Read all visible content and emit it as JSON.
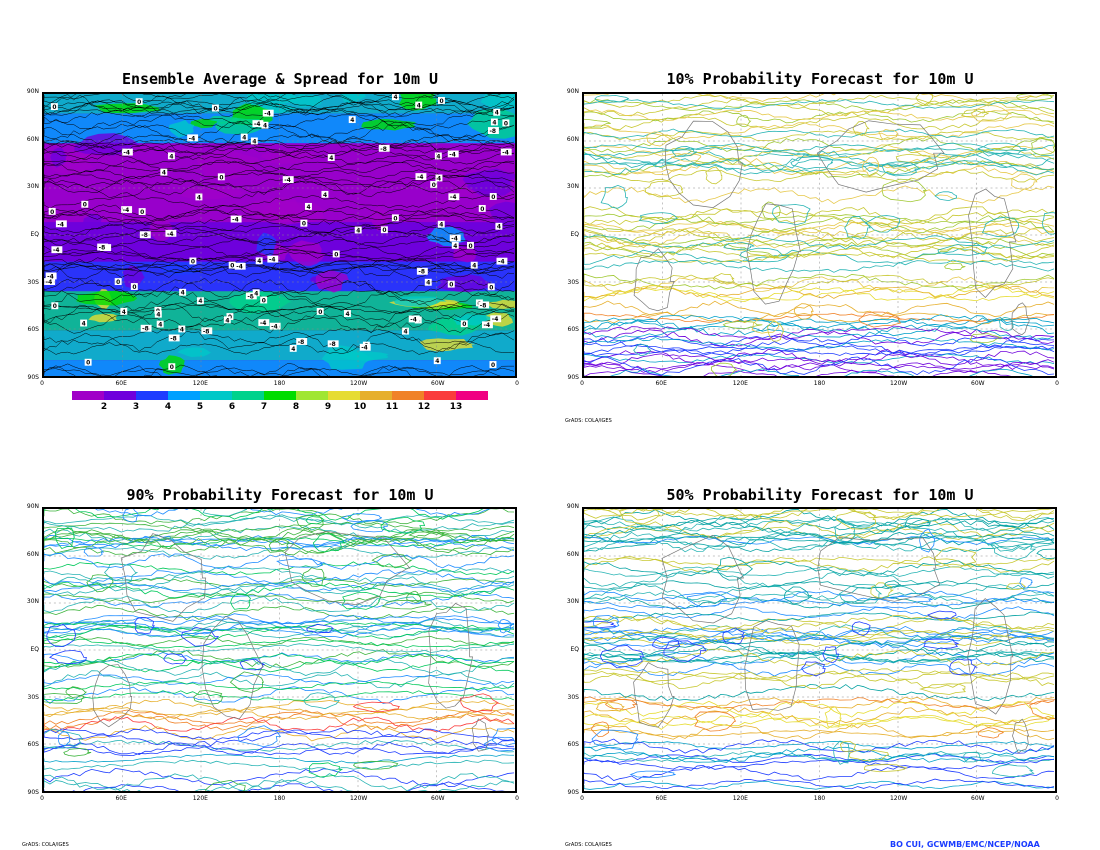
{
  "panels": [
    {
      "id": "ensemble",
      "title": "Ensemble Average & Spread for 10m U"
    },
    {
      "id": "p10",
      "title": "10% Probability Forecast for 10m U"
    },
    {
      "id": "p90",
      "title": "90% Probability Forecast for 10m U"
    },
    {
      "id": "p50",
      "title": "50% Probability Forecast for 10m U"
    }
  ],
  "lat_labels": [
    "90N",
    "60N",
    "30N",
    "EQ",
    "30S",
    "60S",
    "90S"
  ],
  "lon_labels": [
    "0",
    "60E",
    "120E",
    "180",
    "120W",
    "60W",
    "0"
  ],
  "colorbar": {
    "labels": [
      "2",
      "3",
      "4",
      "5",
      "6",
      "7",
      "8",
      "9",
      "10",
      "11",
      "12",
      "13"
    ],
    "colors": [
      "#a000c8",
      "#6e00dc",
      "#1e3cff",
      "#00a0ff",
      "#00c8c8",
      "#00d28c",
      "#00dc00",
      "#a0e632",
      "#e6dc32",
      "#e6af2d",
      "#f08228",
      "#fa3c3c",
      "#f00082"
    ]
  },
  "credits": {
    "grads": "GrADS: COLA/IGES",
    "author": "BO CUI, GCWMB/EMC/NCEP/NOAA"
  }
}
